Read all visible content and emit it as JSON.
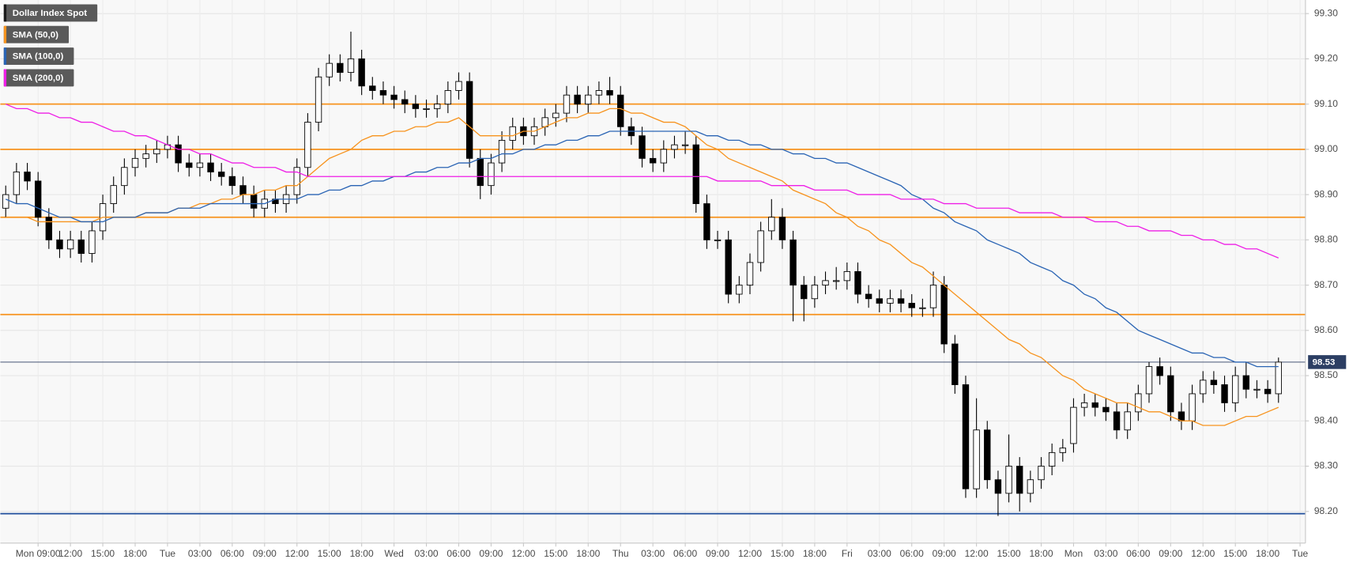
{
  "chart_data": {
    "type": "candlestick",
    "name": "Dollar Index Spot",
    "categories": [
      null,
      null,
      null,
      "Mon 09:00",
      null,
      null,
      "12:00",
      null,
      null,
      "15:00",
      null,
      null,
      "18:00",
      null,
      null,
      "Tue",
      null,
      null,
      "03:00",
      null,
      null,
      "06:00",
      null,
      null,
      "09:00",
      null,
      null,
      "12:00",
      null,
      null,
      "15:00",
      null,
      null,
      "18:00",
      null,
      null,
      "Wed",
      null,
      null,
      "03:00",
      null,
      null,
      "06:00",
      null,
      null,
      "09:00",
      null,
      null,
      "12:00",
      null,
      null,
      "15:00",
      null,
      null,
      "18:00",
      null,
      null,
      "Thu",
      null,
      null,
      "03:00",
      null,
      null,
      "06:00",
      null,
      null,
      "09:00",
      null,
      null,
      "12:00",
      null,
      null,
      "15:00",
      null,
      null,
      "18:00",
      null,
      null,
      "Fri",
      null,
      null,
      "03:00",
      null,
      null,
      "06:00",
      null,
      null,
      "09:00",
      null,
      null,
      "12:00",
      null,
      null,
      "15:00",
      null,
      null,
      "18:00",
      null,
      null,
      "Mon",
      null,
      null,
      "03:00",
      null,
      null,
      "06:00",
      null,
      null,
      "09:00",
      null,
      null,
      "12:00",
      null,
      null,
      "15:00",
      null,
      null,
      "18:00",
      null,
      null,
      "Tue"
    ],
    "open": [
      98.87,
      98.9,
      98.95,
      98.93,
      98.85,
      98.8,
      98.78,
      98.8,
      98.77,
      98.82,
      98.88,
      98.92,
      98.96,
      98.98,
      98.99,
      99.0,
      99.01,
      98.97,
      98.96,
      98.97,
      98.95,
      98.94,
      98.92,
      98.9,
      98.87,
      98.89,
      98.88,
      98.9,
      98.96,
      99.06,
      99.16,
      99.19,
      99.17,
      99.2,
      99.14,
      99.13,
      99.12,
      99.11,
      99.1,
      99.09,
      99.09,
      99.1,
      99.13,
      99.15,
      98.98,
      98.92,
      98.97,
      99.02,
      99.05,
      99.03,
      99.05,
      99.07,
      99.08,
      99.12,
      99.1,
      99.12,
      99.13,
      99.12,
      99.05,
      99.03,
      98.98,
      98.97,
      99.0,
      99.01,
      99.01,
      98.88,
      98.8,
      98.8,
      98.68,
      98.7,
      98.75,
      98.82,
      98.85,
      98.8,
      98.7,
      98.67,
      98.7,
      98.71,
      98.71,
      98.73,
      98.68,
      98.67,
      98.66,
      98.67,
      98.66,
      98.65,
      98.65,
      98.7,
      98.57,
      98.48,
      98.25,
      98.38,
      98.27,
      98.24,
      98.3,
      98.24,
      98.27,
      98.3,
      98.33,
      98.35,
      98.43,
      98.44,
      98.43,
      98.42,
      98.38,
      98.42,
      98.46,
      98.52,
      98.5,
      98.42,
      98.4,
      98.46,
      98.49,
      98.48,
      98.44,
      98.5,
      98.47,
      98.47,
      98.46,
      null,
      null
    ],
    "high": [
      98.92,
      98.97,
      98.97,
      98.95,
      98.87,
      98.82,
      98.82,
      98.82,
      98.84,
      98.9,
      98.94,
      98.98,
      99.0,
      99.01,
      99.02,
      99.03,
      99.03,
      98.99,
      98.99,
      98.99,
      98.97,
      98.96,
      98.94,
      98.92,
      98.91,
      98.91,
      98.92,
      98.98,
      99.08,
      99.18,
      99.21,
      99.21,
      99.26,
      99.22,
      99.16,
      99.15,
      99.14,
      99.13,
      99.12,
      99.11,
      99.12,
      99.15,
      99.17,
      99.17,
      99.0,
      98.99,
      99.04,
      99.07,
      99.07,
      99.07,
      99.09,
      99.1,
      99.14,
      99.14,
      99.14,
      99.15,
      99.16,
      99.14,
      99.07,
      99.05,
      99.0,
      99.02,
      99.03,
      99.04,
      99.03,
      98.9,
      98.82,
      98.82,
      98.72,
      98.77,
      98.84,
      98.89,
      98.87,
      98.82,
      98.72,
      98.72,
      98.73,
      98.74,
      98.75,
      98.75,
      98.7,
      98.69,
      98.69,
      98.69,
      98.68,
      98.67,
      98.73,
      98.72,
      98.59,
      98.5,
      98.45,
      98.4,
      98.29,
      98.37,
      98.32,
      98.29,
      98.32,
      98.35,
      98.36,
      98.45,
      98.46,
      98.46,
      98.45,
      98.44,
      98.44,
      98.48,
      98.53,
      98.54,
      98.52,
      98.44,
      98.48,
      98.51,
      98.51,
      98.5,
      98.52,
      98.53,
      98.49,
      98.49,
      98.54,
      null,
      null
    ],
    "low": [
      98.85,
      98.88,
      98.91,
      98.83,
      98.78,
      98.76,
      98.76,
      98.75,
      98.75,
      98.8,
      98.86,
      98.9,
      98.94,
      98.96,
      98.97,
      98.98,
      98.95,
      98.94,
      98.94,
      98.93,
      98.92,
      98.9,
      98.88,
      98.85,
      98.85,
      98.86,
      98.86,
      98.88,
      98.94,
      99.04,
      99.14,
      99.15,
      99.15,
      99.12,
      99.11,
      99.1,
      99.09,
      99.08,
      99.07,
      99.07,
      99.07,
      99.08,
      99.11,
      98.96,
      98.89,
      98.9,
      98.95,
      99.0,
      99.01,
      99.01,
      99.03,
      99.05,
      99.06,
      99.08,
      99.08,
      99.1,
      99.1,
      99.03,
      99.01,
      98.96,
      98.95,
      98.95,
      98.98,
      98.99,
      98.86,
      98.78,
      98.78,
      98.66,
      98.66,
      98.68,
      98.73,
      98.8,
      98.78,
      98.62,
      98.62,
      98.65,
      98.68,
      98.69,
      98.69,
      98.66,
      98.65,
      98.64,
      98.64,
      98.64,
      98.63,
      98.63,
      98.63,
      98.55,
      98.46,
      98.23,
      98.23,
      98.25,
      98.19,
      98.22,
      98.2,
      98.22,
      98.25,
      98.28,
      98.31,
      98.33,
      98.41,
      98.41,
      98.4,
      98.36,
      98.36,
      98.4,
      98.44,
      98.48,
      98.4,
      98.38,
      98.38,
      98.44,
      98.46,
      98.42,
      98.42,
      98.45,
      98.45,
      98.44,
      98.44,
      null,
      null
    ],
    "close": [
      98.9,
      98.95,
      98.93,
      98.85,
      98.8,
      98.78,
      98.8,
      98.77,
      98.82,
      98.88,
      98.92,
      98.96,
      98.98,
      98.99,
      99.0,
      99.01,
      98.97,
      98.96,
      98.97,
      98.95,
      98.94,
      98.92,
      98.9,
      98.87,
      98.89,
      98.88,
      98.9,
      98.96,
      99.06,
      99.16,
      99.19,
      99.17,
      99.2,
      99.14,
      99.13,
      99.12,
      99.11,
      99.1,
      99.09,
      99.09,
      99.1,
      99.13,
      99.15,
      98.98,
      98.92,
      98.97,
      99.02,
      99.05,
      99.03,
      99.05,
      99.07,
      99.08,
      99.12,
      99.1,
      99.12,
      99.13,
      99.12,
      99.05,
      99.03,
      98.98,
      98.97,
      99.0,
      99.01,
      99.01,
      98.88,
      98.8,
      98.8,
      98.68,
      98.7,
      98.75,
      98.82,
      98.85,
      98.8,
      98.7,
      98.67,
      98.7,
      98.71,
      98.71,
      98.73,
      98.68,
      98.67,
      98.66,
      98.67,
      98.66,
      98.65,
      98.65,
      98.7,
      98.57,
      98.48,
      98.25,
      98.38,
      98.27,
      98.24,
      98.3,
      98.24,
      98.27,
      98.3,
      98.33,
      98.34,
      98.43,
      98.44,
      98.43,
      98.42,
      98.38,
      98.42,
      98.46,
      98.52,
      98.5,
      98.42,
      98.4,
      98.46,
      98.49,
      98.48,
      98.44,
      98.5,
      98.47,
      98.47,
      98.46,
      98.53,
      null,
      null
    ],
    "up_color": "#ffffff",
    "down_color": "#000000",
    "name_color": "#1a1a1a",
    "series": [
      {
        "name": "SMA (50,0)",
        "color": "#f7931e",
        "values": [
          98.85,
          98.85,
          98.85,
          98.84,
          98.84,
          98.84,
          98.84,
          98.84,
          98.84,
          98.85,
          98.85,
          98.85,
          98.85,
          98.86,
          98.86,
          98.86,
          98.87,
          98.87,
          98.88,
          98.88,
          98.89,
          98.89,
          98.9,
          98.9,
          98.91,
          98.91,
          98.92,
          98.92,
          98.94,
          98.96,
          98.98,
          98.99,
          99.0,
          99.02,
          99.03,
          99.03,
          99.04,
          99.04,
          99.05,
          99.05,
          99.06,
          99.06,
          99.07,
          99.05,
          99.03,
          99.03,
          99.03,
          99.03,
          99.04,
          99.04,
          99.05,
          99.06,
          99.07,
          99.07,
          99.08,
          99.08,
          99.09,
          99.09,
          99.08,
          99.08,
          99.07,
          99.06,
          99.06,
          99.05,
          99.03,
          99.01,
          99.0,
          98.98,
          98.97,
          98.96,
          98.95,
          98.94,
          98.93,
          98.91,
          98.9,
          98.89,
          98.88,
          98.86,
          98.85,
          98.83,
          98.82,
          98.8,
          98.79,
          98.77,
          98.75,
          98.74,
          98.72,
          98.7,
          98.68,
          98.66,
          98.64,
          98.62,
          98.6,
          98.58,
          98.57,
          98.55,
          98.54,
          98.52,
          98.5,
          98.49,
          98.47,
          98.46,
          98.45,
          98.44,
          98.44,
          98.43,
          98.42,
          98.42,
          98.41,
          98.4,
          98.4,
          98.39,
          98.39,
          98.39,
          98.4,
          98.41,
          98.41,
          98.42,
          98.43,
          null,
          null
        ]
      },
      {
        "name": "SMA (100,0)",
        "color": "#2a64b4",
        "values": [
          98.89,
          98.88,
          98.88,
          98.87,
          98.86,
          98.85,
          98.85,
          98.84,
          98.84,
          98.84,
          98.85,
          98.85,
          98.85,
          98.86,
          98.86,
          98.86,
          98.87,
          98.87,
          98.87,
          98.88,
          98.88,
          98.88,
          98.88,
          98.88,
          98.88,
          98.89,
          98.89,
          98.89,
          98.9,
          98.9,
          98.91,
          98.91,
          98.92,
          98.92,
          98.93,
          98.93,
          98.94,
          98.94,
          98.95,
          98.95,
          98.96,
          98.96,
          98.97,
          98.97,
          98.98,
          98.98,
          98.99,
          98.99,
          99.0,
          99.0,
          99.01,
          99.01,
          99.02,
          99.02,
          99.03,
          99.03,
          99.04,
          99.04,
          99.04,
          99.04,
          99.04,
          99.04,
          99.04,
          99.04,
          99.04,
          99.03,
          99.03,
          99.02,
          99.02,
          99.01,
          99.01,
          99.0,
          99.0,
          98.99,
          98.99,
          98.98,
          98.98,
          98.97,
          98.97,
          98.96,
          98.95,
          98.94,
          98.93,
          98.92,
          98.9,
          98.89,
          98.87,
          98.86,
          98.84,
          98.83,
          98.82,
          98.8,
          98.79,
          98.78,
          98.77,
          98.75,
          98.74,
          98.73,
          98.71,
          98.7,
          98.68,
          98.67,
          98.65,
          98.64,
          98.62,
          98.6,
          98.59,
          98.58,
          98.57,
          98.56,
          98.55,
          98.55,
          98.54,
          98.54,
          98.53,
          98.53,
          98.52,
          98.52,
          98.52,
          null,
          null
        ]
      },
      {
        "name": "SMA (200,0)",
        "color": "#ee1ee6",
        "values": [
          99.1,
          99.09,
          99.09,
          99.08,
          99.08,
          99.07,
          99.07,
          99.06,
          99.06,
          99.05,
          99.04,
          99.04,
          99.03,
          99.03,
          99.02,
          99.01,
          99.0,
          99.0,
          98.99,
          98.99,
          98.98,
          98.97,
          98.97,
          98.96,
          98.96,
          98.96,
          98.95,
          98.95,
          98.94,
          98.94,
          98.94,
          98.94,
          98.94,
          98.94,
          98.94,
          98.94,
          98.94,
          98.94,
          98.94,
          98.94,
          98.94,
          98.94,
          98.94,
          98.94,
          98.94,
          98.94,
          98.94,
          98.94,
          98.94,
          98.94,
          98.94,
          98.94,
          98.94,
          98.94,
          98.94,
          98.94,
          98.94,
          98.94,
          98.94,
          98.94,
          98.94,
          98.94,
          98.94,
          98.94,
          98.94,
          98.94,
          98.93,
          98.93,
          98.93,
          98.93,
          98.93,
          98.92,
          98.92,
          98.92,
          98.92,
          98.91,
          98.91,
          98.91,
          98.91,
          98.9,
          98.9,
          98.9,
          98.9,
          98.89,
          98.89,
          98.89,
          98.89,
          98.88,
          98.88,
          98.88,
          98.87,
          98.87,
          98.87,
          98.87,
          98.86,
          98.86,
          98.86,
          98.86,
          98.85,
          98.85,
          98.85,
          98.84,
          98.84,
          98.84,
          98.83,
          98.83,
          98.82,
          98.82,
          98.82,
          98.81,
          98.81,
          98.8,
          98.8,
          98.79,
          98.79,
          98.78,
          98.78,
          98.77,
          98.76,
          null,
          null
        ]
      }
    ],
    "levels": [
      {
        "value": 99.1,
        "color": "#f7931e"
      },
      {
        "value": 99.0,
        "color": "#f7931e"
      },
      {
        "value": 98.85,
        "color": "#f7931e"
      },
      {
        "value": 98.635,
        "color": "#f7931e"
      },
      {
        "value": 98.195,
        "color": "#1f4e9c"
      }
    ],
    "last_price": 98.53,
    "last_price_color": "#2c3e63",
    "ylim": [
      98.13,
      99.33
    ],
    "yticks": [
      {
        "value": 98.2,
        "label": "98.20"
      },
      {
        "value": 98.3,
        "label": "98.30"
      },
      {
        "value": 98.4,
        "label": "98.40"
      },
      {
        "value": 98.5,
        "label": "98.50"
      },
      {
        "value": 98.6,
        "label": "98.60"
      },
      {
        "value": 98.7,
        "label": "98.70"
      },
      {
        "value": 98.8,
        "label": "98.80"
      },
      {
        "value": 98.9,
        "label": "98.90"
      },
      {
        "value": 99.0,
        "label": "99.00"
      },
      {
        "value": 99.1,
        "label": "99.10"
      },
      {
        "value": 99.2,
        "label": "99.20"
      },
      {
        "value": 99.3,
        "label": "99.30"
      }
    ],
    "grid": true
  }
}
